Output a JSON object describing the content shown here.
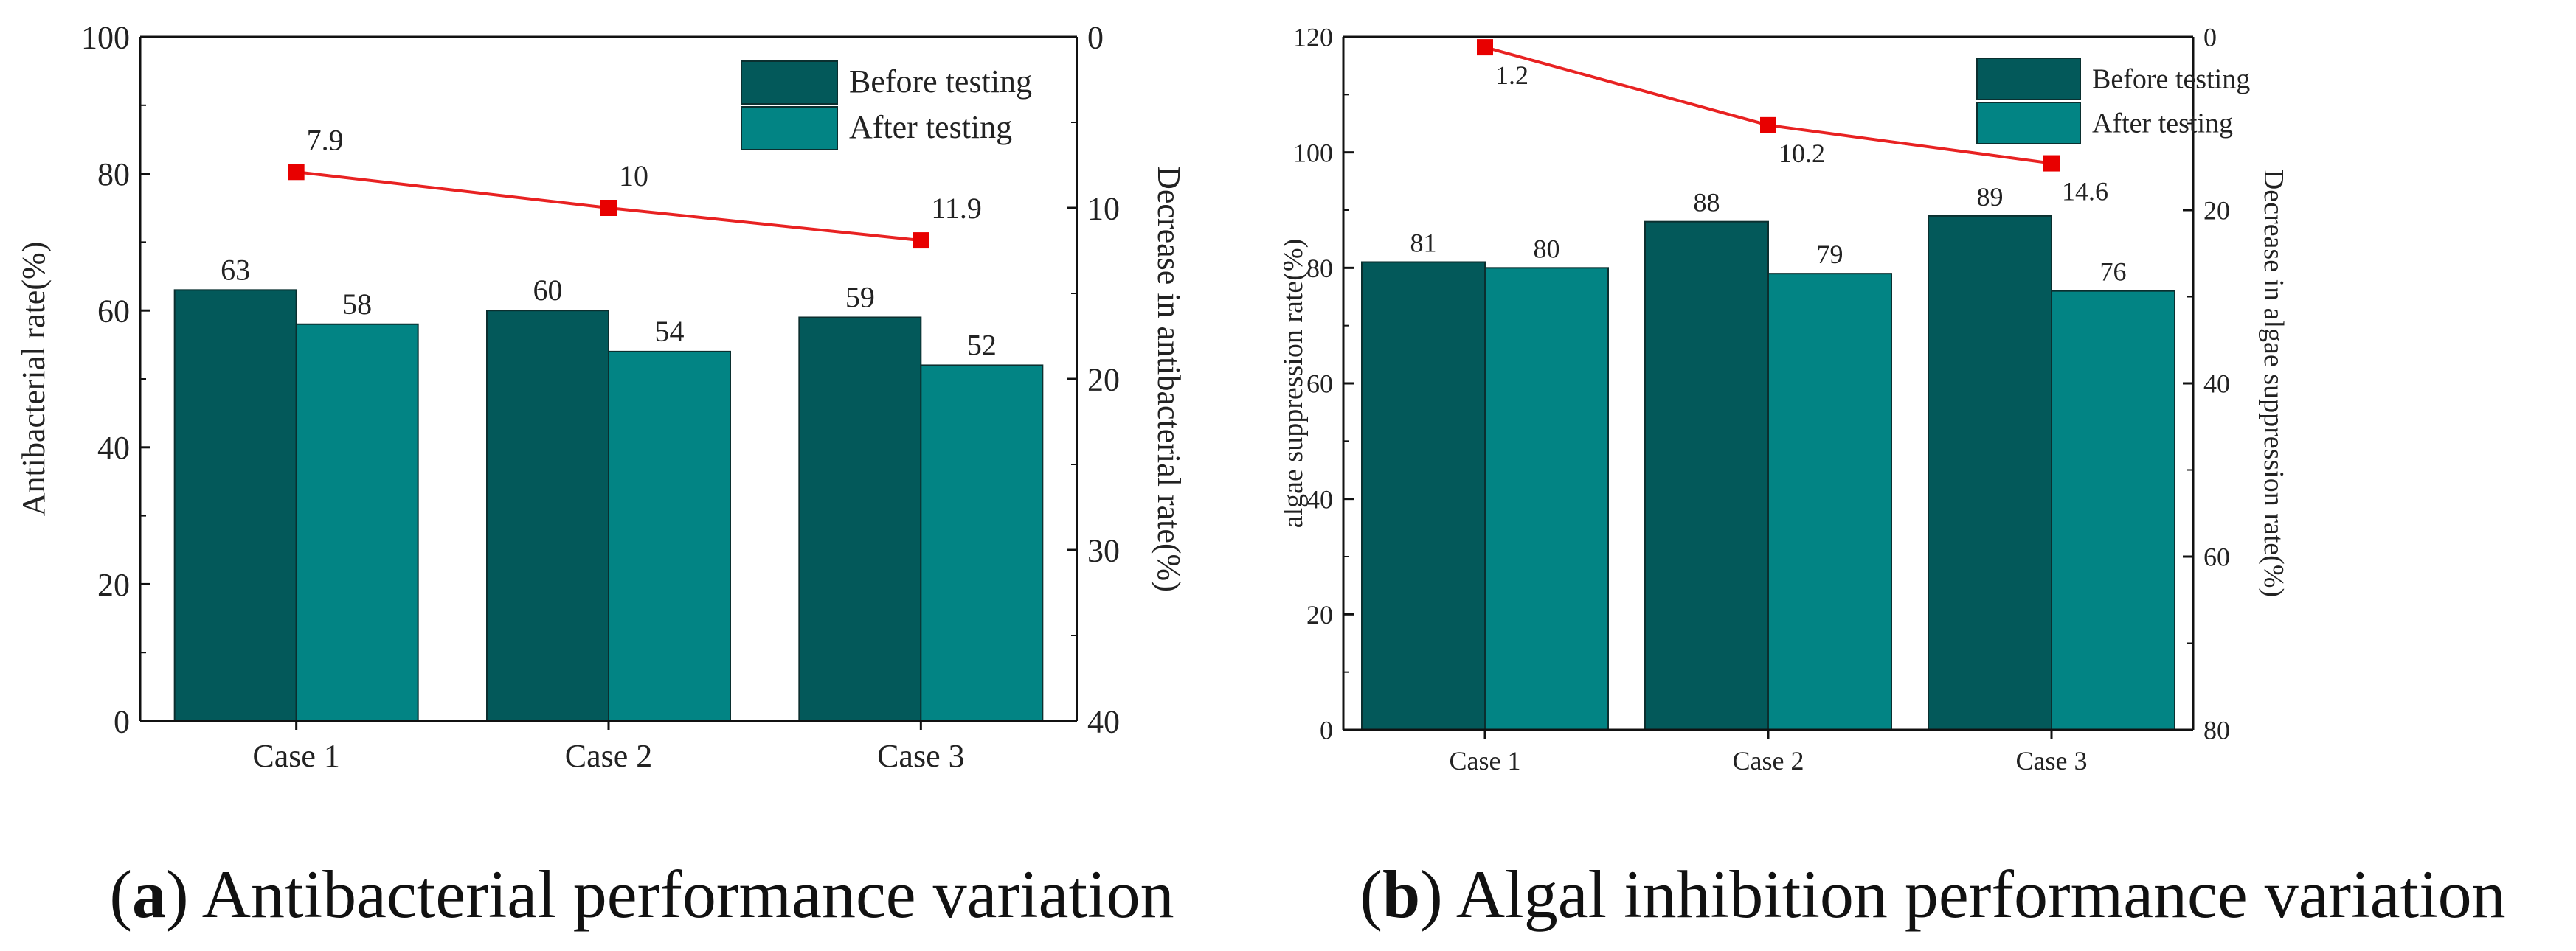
{
  "colors": {
    "before": "#03595A",
    "after": "#028484",
    "line": "#E82222",
    "marker": "#E80000",
    "axis": "#111111"
  },
  "chart_data": [
    {
      "type": "bar",
      "categories": [
        "Case 1",
        "Case 2",
        "Case 3"
      ],
      "series": [
        {
          "name": "Before testing",
          "values": [
            63,
            60,
            59
          ]
        },
        {
          "name": "After testing",
          "values": [
            58,
            54,
            52
          ]
        }
      ],
      "line_series": {
        "values": [
          7.9,
          10,
          11.9
        ],
        "labels": [
          "7.9",
          "10",
          "11.9"
        ],
        "axis": "right"
      },
      "ylabel": "Antibacterial rate(%)",
      "ylim": [
        0,
        100
      ],
      "yticks": [
        0,
        20,
        40,
        60,
        80,
        100
      ],
      "y2label": "Decrease in antibacterial rate(%)",
      "y2lim": [
        0,
        40
      ],
      "y2ticks": [
        0,
        10,
        20,
        30,
        40
      ],
      "y2_inverted": true,
      "legend": "top-right",
      "grid": false
    },
    {
      "type": "bar",
      "categories": [
        "Case 1",
        "Case 2",
        "Case 3"
      ],
      "series": [
        {
          "name": "Before testing",
          "values": [
            81,
            88,
            89
          ]
        },
        {
          "name": "After testing",
          "values": [
            80,
            79,
            76
          ]
        }
      ],
      "line_series": {
        "values": [
          1.2,
          10.2,
          14.6
        ],
        "labels": [
          "1.2",
          "10.2",
          "14.6"
        ],
        "axis": "right"
      },
      "ylabel": "algae suppression rate(%)",
      "ylim": [
        0,
        120
      ],
      "yticks": [
        0,
        20,
        40,
        60,
        80,
        100,
        120
      ],
      "y2label": "Decrease in algae suppression rate(%)",
      "y2lim": [
        0,
        80
      ],
      "y2ticks": [
        0,
        20,
        40,
        60,
        80
      ],
      "y2_inverted": true,
      "legend": "top-right",
      "grid": false
    }
  ],
  "captions": [
    {
      "letter": "a",
      "text": "Antibacterial performance variation"
    },
    {
      "letter": "b",
      "text": "Algal inhibition performance variation"
    }
  ]
}
